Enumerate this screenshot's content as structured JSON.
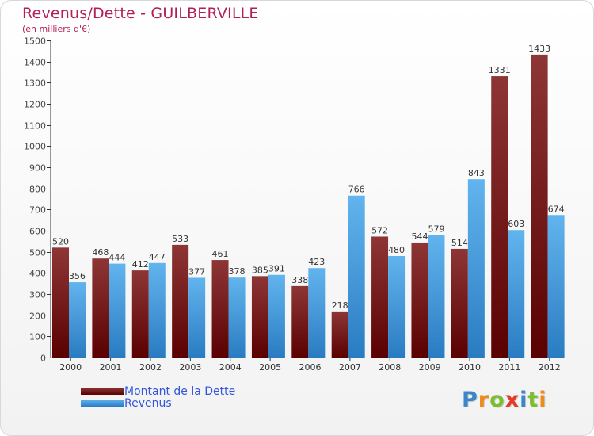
{
  "chart_data": {
    "type": "bar",
    "title": "Revenus/Dette - GUILBERVILLE",
    "subtitle": "(en milliers d'€)",
    "xlabel": "",
    "ylabel": "",
    "ylim": [
      0,
      1500
    ],
    "ytick_step": 100,
    "categories": [
      "2000",
      "2001",
      "2002",
      "2003",
      "2004",
      "2005",
      "2006",
      "2007",
      "2008",
      "2009",
      "2010",
      "2011",
      "2012"
    ],
    "series": [
      {
        "name": "Montant de la Dette",
        "values": [
          520,
          468,
          412,
          533,
          461,
          385,
          338,
          218,
          572,
          544,
          514,
          1331,
          1433
        ]
      },
      {
        "name": "Revenus",
        "values": [
          356,
          444,
          447,
          377,
          378,
          391,
          423,
          766,
          480,
          579,
          843,
          603,
          674
        ]
      }
    ],
    "legend_position": "bottom-left",
    "grid": false
  },
  "colors": {
    "debt_dark": "#5a0000",
    "debt_light": "#8e3636",
    "rev_dark": "#2a7cc2",
    "rev_light": "#62b4ee",
    "axis": "#333333",
    "title": "#b21e57",
    "legend_text": "#3355dd"
  },
  "logo": {
    "text": "Proxiti"
  }
}
